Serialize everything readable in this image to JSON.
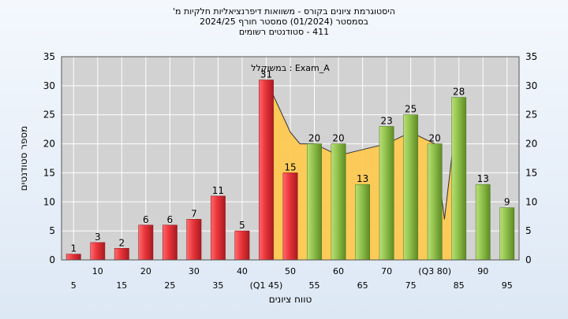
{
  "title_lines": [
    "היסטוגרמת ציונים בקורס - משוואות דיפרנציאליות חלקיות מ'",
    "בסמסטר  (01/2024)  סמסטר חורף 2024/25",
    "411 - סטודנטים רשומים"
  ],
  "colors": {
    "below_median_bar": "#e8343a",
    "above_median_bar": "#8fc04a",
    "distribution_fill": "#ffc94a",
    "plot_background": "#d2d2d2",
    "grid": "#ffffff"
  },
  "chart_data": {
    "type": "bar",
    "annotation": "במשוקלל : Exam_A",
    "xlabel": "טווח ציונים",
    "ylabel": "מספר סטודנטים",
    "ylim": [
      0,
      35
    ],
    "yticks": [
      0,
      5,
      10,
      15,
      20,
      25,
      30,
      35
    ],
    "grid": true,
    "categories": [
      "5",
      "10",
      "15",
      "20",
      "25",
      "30",
      "35",
      "40",
      "(Q1 45)",
      "50",
      "55",
      "60",
      "65",
      "70",
      "75",
      "(Q3 80)",
      "85",
      "90",
      "95"
    ],
    "values": [
      1,
      3,
      2,
      6,
      6,
      7,
      11,
      5,
      31,
      15,
      20,
      20,
      13,
      23,
      25,
      20,
      28,
      13,
      9
    ],
    "bar_colors": [
      "red",
      "red",
      "red",
      "red",
      "red",
      "red",
      "red",
      "red",
      "red",
      "red",
      "green",
      "green",
      "green",
      "green",
      "green",
      "green",
      "green",
      "green",
      "green"
    ],
    "distribution_curve": [
      [
        45,
        31
      ],
      [
        50,
        22
      ],
      [
        52,
        20
      ],
      [
        55,
        20
      ],
      [
        60,
        18
      ],
      [
        65,
        19
      ],
      [
        70,
        20
      ],
      [
        75,
        22
      ],
      [
        80,
        20
      ],
      [
        82,
        7
      ],
      [
        85,
        28
      ]
    ]
  }
}
